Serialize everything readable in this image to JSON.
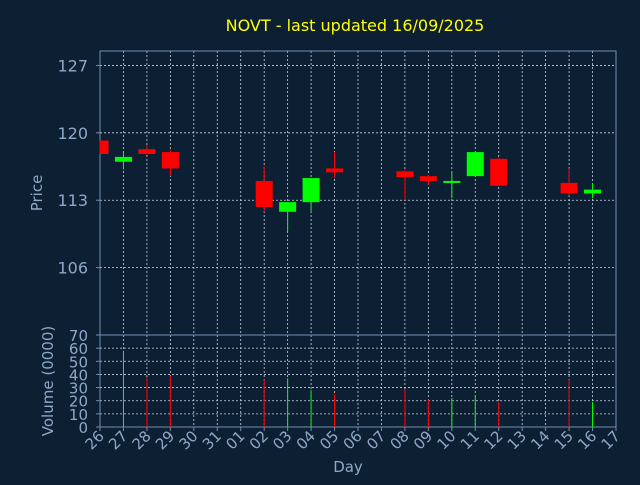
{
  "colors": {
    "background": "#0d1f33",
    "axis": "#6f8fb0",
    "grid": "#c8d4e0",
    "title": "#ffff00",
    "label": "#8fa8c8",
    "up": "#00ff00",
    "down": "#ff0000"
  },
  "chart_data": [
    {
      "type": "candlestick",
      "title": "NOVT - last updated 16/09/2025",
      "ylabel": "Price",
      "ylim": [
        99.0,
        128.5
      ],
      "yticks": [
        106,
        113,
        120,
        127
      ],
      "grid": true,
      "x": [
        "26",
        "27",
        "28",
        "29",
        "30",
        "31",
        "01",
        "02",
        "03",
        "04",
        "05",
        "06",
        "07",
        "08",
        "09",
        "10",
        "11",
        "12",
        "13",
        "14",
        "15",
        "16",
        "17"
      ],
      "candles": [
        {
          "day": "26",
          "open": 119.2,
          "high": 119.2,
          "low": 117.8,
          "close": 117.8
        },
        {
          "day": "27",
          "open": 117.0,
          "high": 117.9,
          "low": 116.2,
          "close": 117.5
        },
        {
          "day": "28",
          "open": 118.3,
          "high": 118.7,
          "low": 117.7,
          "close": 117.8
        },
        {
          "day": "29",
          "open": 118.0,
          "high": 118.2,
          "low": 115.5,
          "close": 116.3
        },
        {
          "day": "02",
          "open": 115.0,
          "high": 116.5,
          "low": 111.8,
          "close": 112.3
        },
        {
          "day": "03",
          "open": 111.8,
          "high": 112.8,
          "low": 109.8,
          "close": 112.8
        },
        {
          "day": "04",
          "open": 112.8,
          "high": 115.3,
          "low": 111.8,
          "close": 115.3
        },
        {
          "day": "05",
          "open": 116.3,
          "high": 118.0,
          "low": 115.3,
          "close": 115.9
        },
        {
          "day": "08",
          "open": 116.0,
          "high": 116.2,
          "low": 113.0,
          "close": 115.4
        },
        {
          "day": "09",
          "open": 115.5,
          "high": 115.6,
          "low": 114.6,
          "close": 115.0
        },
        {
          "day": "10",
          "open": 114.8,
          "high": 116.0,
          "low": 113.2,
          "close": 114.9
        },
        {
          "day": "11",
          "open": 115.5,
          "high": 118.0,
          "low": 115.5,
          "close": 118.0
        },
        {
          "day": "12",
          "open": 117.3,
          "high": 117.4,
          "low": 114.5,
          "close": 114.5
        },
        {
          "day": "15",
          "open": 114.8,
          "high": 116.3,
          "low": 113.5,
          "close": 113.7
        },
        {
          "day": "16",
          "open": 113.7,
          "high": 114.8,
          "low": 113.2,
          "close": 114.1
        }
      ]
    },
    {
      "type": "bar",
      "ylabel": "Volume (0000)",
      "xlabel": "Day",
      "ylim": [
        0,
        70
      ],
      "yticks": [
        0,
        10,
        20,
        30,
        40,
        50,
        60,
        70
      ],
      "grid": true,
      "categories": [
        "26",
        "27",
        "28",
        "29",
        "02",
        "03",
        "04",
        "05",
        "08",
        "09",
        "10",
        "11",
        "12",
        "15",
        "16"
      ],
      "values": [
        0,
        58,
        38,
        39,
        36,
        37,
        28,
        25,
        29,
        21,
        22,
        24,
        19,
        36,
        19
      ],
      "directions": [
        "down",
        "up",
        "down",
        "down",
        "down",
        "up",
        "up",
        "down",
        "down",
        "down",
        "up",
        "up",
        "down",
        "down",
        "up"
      ]
    }
  ]
}
